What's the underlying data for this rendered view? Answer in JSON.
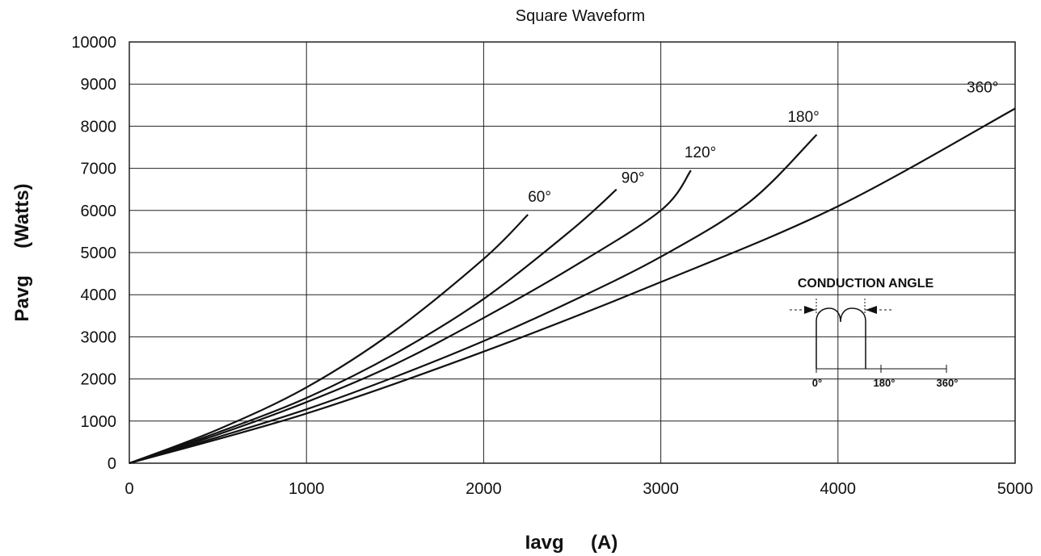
{
  "chart_data": {
    "type": "line",
    "title": "Square Waveform",
    "xlabel": "Iavg     (A)",
    "ylabel": "Pavg     (Watts)",
    "xlim": [
      0,
      5000
    ],
    "ylim": [
      0,
      10000
    ],
    "x_ticks": [
      "0",
      "1000",
      "2000",
      "3000",
      "4000",
      "5000"
    ],
    "y_ticks": [
      "0",
      "1000",
      "2000",
      "3000",
      "4000",
      "5000",
      "6000",
      "7000",
      "8000",
      "9000",
      "10000"
    ],
    "grid": true,
    "series": [
      {
        "name": "60°",
        "x": [
          0,
          500,
          1000,
          1500,
          2000,
          2250
        ],
        "y": [
          0,
          800,
          1800,
          3150,
          4850,
          5900
        ]
      },
      {
        "name": "90°",
        "x": [
          0,
          500,
          1000,
          1500,
          2000,
          2500,
          2750
        ],
        "y": [
          0,
          730,
          1550,
          2600,
          3900,
          5550,
          6500
        ]
      },
      {
        "name": "120°",
        "x": [
          0,
          500,
          1000,
          1500,
          2000,
          2500,
          3000,
          3170
        ],
        "y": [
          0,
          680,
          1450,
          2350,
          3450,
          4650,
          6000,
          6950
        ]
      },
      {
        "name": "180°",
        "x": [
          0,
          500,
          1000,
          1500,
          2000,
          2500,
          3000,
          3500,
          3880
        ],
        "y": [
          0,
          620,
          1280,
          2050,
          2900,
          3850,
          4900,
          6200,
          7800
        ]
      },
      {
        "name": "360°",
        "x": [
          0,
          1000,
          2000,
          3000,
          4000,
          5000
        ],
        "y": [
          0,
          1180,
          2650,
          4300,
          6100,
          8420
        ]
      }
    ],
    "labels": [
      "60°",
      "90°",
      "120°",
      "180°",
      "360°"
    ]
  },
  "inset": {
    "title": "CONDUCTION ANGLE",
    "ticks": [
      "0°",
      "180°",
      "360°"
    ]
  }
}
